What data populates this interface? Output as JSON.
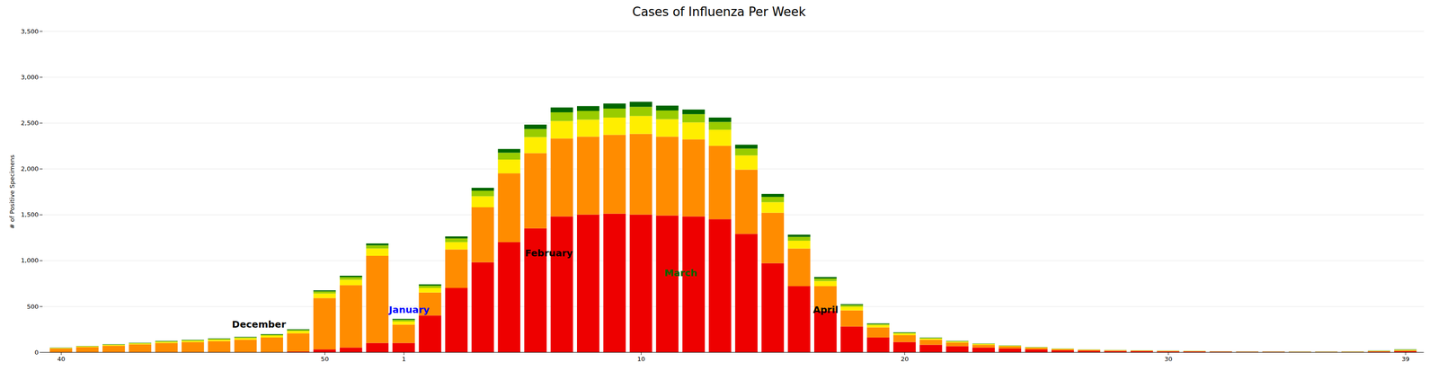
{
  "chart_data": {
    "type": "bar",
    "stacked": true,
    "title": "Cases of Influenza Per  Week",
    "ylabel": "# of Positive Specimens",
    "ylim": [
      0,
      3500
    ],
    "yticks": [
      0,
      500,
      {
        "value": 1000,
        "label": "1,000"
      },
      {
        "value": 1500,
        "label": "1,500"
      },
      {
        "value": 2000,
        "label": "2,000"
      },
      {
        "value": 2500,
        "label": "2,500"
      },
      {
        "value": 3000,
        "label": "3,000"
      },
      {
        "value": 3500,
        "label": "3,500"
      }
    ],
    "grid": true,
    "categories": [
      40,
      null,
      null,
      null,
      null,
      null,
      null,
      null,
      null,
      null,
      50,
      null,
      null,
      1,
      null,
      null,
      null,
      null,
      null,
      null,
      null,
      null,
      10,
      null,
      null,
      null,
      null,
      null,
      null,
      null,
      null,
      null,
      20,
      null,
      null,
      null,
      null,
      null,
      null,
      null,
      null,
      null,
      30,
      null,
      null,
      null,
      null,
      null,
      null,
      null,
      null,
      39
    ],
    "series": [
      {
        "color": "#ee0000",
        "values": [
          0,
          0,
          0,
          0,
          0,
          0,
          0,
          0,
          0,
          5,
          30,
          50,
          100,
          100,
          400,
          700,
          980,
          1200,
          1350,
          1480,
          1500,
          1510,
          1500,
          1490,
          1480,
          1450,
          1290,
          970,
          720,
          450,
          280,
          160,
          110,
          80,
          65,
          50,
          40,
          30,
          20,
          15,
          12,
          10,
          8,
          6,
          4,
          3,
          3,
          2,
          2,
          2,
          5,
          10
        ]
      },
      {
        "color": "#ff8c00",
        "values": [
          40,
          55,
          70,
          85,
          100,
          110,
          120,
          135,
          160,
          200,
          560,
          680,
          950,
          200,
          250,
          420,
          600,
          750,
          820,
          850,
          850,
          860,
          880,
          860,
          840,
          800,
          700,
          550,
          410,
          270,
          175,
          110,
          75,
          55,
          40,
          30,
          22,
          16,
          12,
          9,
          7,
          6,
          5,
          4,
          3,
          2,
          2,
          2,
          2,
          2,
          4,
          8
        ]
      },
      {
        "color": "#ffee00",
        "values": [
          5,
          7,
          9,
          10,
          12,
          14,
          16,
          18,
          20,
          25,
          50,
          60,
          80,
          35,
          50,
          80,
          120,
          150,
          175,
          190,
          185,
          188,
          195,
          190,
          185,
          175,
          155,
          115,
          85,
          55,
          40,
          25,
          18,
          13,
          10,
          8,
          6,
          5,
          4,
          3,
          2,
          2,
          2,
          2,
          1,
          1,
          1,
          1,
          1,
          2,
          4,
          6
        ]
      },
      {
        "color": "#99cc00",
        "values": [
          2,
          3,
          4,
          5,
          6,
          7,
          8,
          9,
          10,
          12,
          22,
          28,
          35,
          18,
          25,
          40,
          60,
          75,
          88,
          95,
          95,
          98,
          100,
          95,
          90,
          85,
          75,
          58,
          42,
          28,
          18,
          12,
          8,
          6,
          5,
          4,
          3,
          2,
          2,
          1,
          1,
          1,
          1,
          1,
          1,
          1,
          1,
          1,
          1,
          1,
          2,
          4
        ]
      },
      {
        "color": "#006600",
        "values": [
          2,
          2,
          3,
          3,
          4,
          4,
          5,
          5,
          6,
          7,
          12,
          15,
          20,
          10,
          14,
          22,
          32,
          40,
          48,
          53,
          53,
          55,
          55,
          53,
          50,
          48,
          42,
          32,
          24,
          16,
          10,
          7,
          5,
          4,
          3,
          2,
          2,
          2,
          1,
          1,
          1,
          1,
          1,
          1,
          1,
          1,
          1,
          1,
          1,
          1,
          2,
          3
        ]
      }
    ],
    "annotations": [
      {
        "text": "December",
        "x": 47.5,
        "y": 270,
        "color": "#000000"
      },
      {
        "text": "January",
        "x": 1.2,
        "y": 430,
        "color": "#0000ff"
      },
      {
        "text": "February",
        "x": 6.5,
        "y": 1050,
        "color": "#000000"
      },
      {
        "text": "March",
        "x": 11.5,
        "y": 830,
        "color": "#006600"
      },
      {
        "text": "April",
        "x": 17.0,
        "y": 430,
        "color": "#000000"
      }
    ]
  }
}
